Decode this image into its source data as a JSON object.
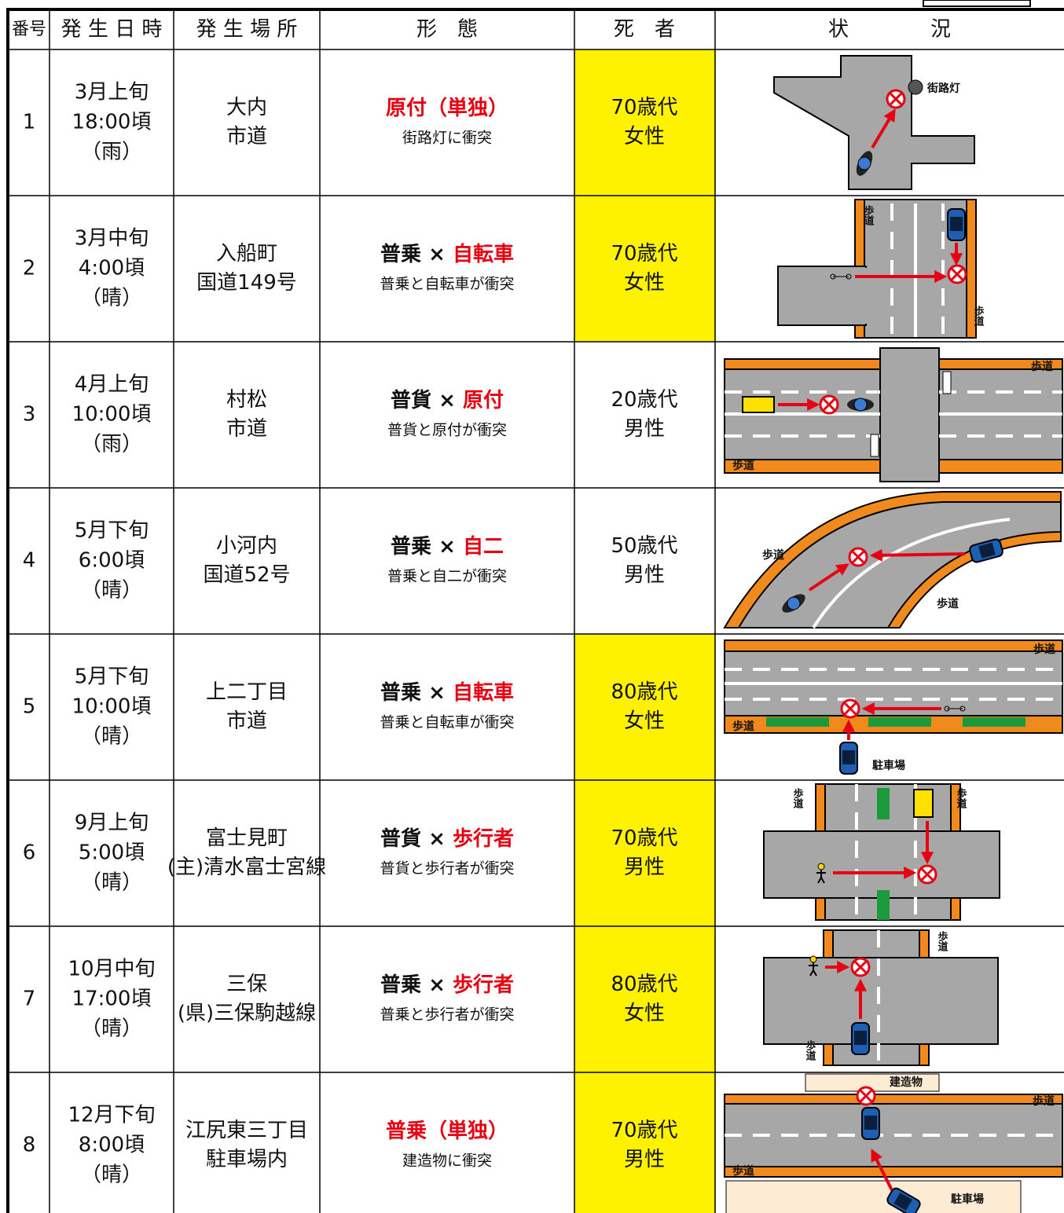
{
  "header": {
    "no": "番号",
    "date": "発 生 日 時",
    "place": "発 生 場 所",
    "form": "形　態",
    "victim": "死　者",
    "situation": "状　　　　況"
  },
  "rows": [
    {
      "no": "1",
      "date": [
        "3月上旬",
        "18:00頃",
        "（雨）"
      ],
      "place": [
        "大内",
        "市道"
      ],
      "form": [
        {
          "text": "原付（単独）",
          "accent": true
        }
      ],
      "form_note": "街路灯に衝突",
      "victim": [
        "70歳代",
        "女性"
      ],
      "highlight": true,
      "diagram_labels": [
        "街路灯"
      ]
    },
    {
      "no": "2",
      "date": [
        "3月中旬",
        "4:00頃",
        "（晴）"
      ],
      "place": [
        "入船町",
        "国道149号"
      ],
      "form": [
        {
          "text": "普乗 × ",
          "accent": false
        },
        {
          "text": "自転車",
          "accent": true
        }
      ],
      "form_note": "普乗と自転車が衝突",
      "victim": [
        "70歳代",
        "女性"
      ],
      "highlight": true,
      "diagram_labels": [
        "歩道",
        "歩道"
      ]
    },
    {
      "no": "3",
      "date": [
        "4月上旬",
        "10:00頃",
        "（雨）"
      ],
      "place": [
        "村松",
        "市道"
      ],
      "form": [
        {
          "text": "普貨 × ",
          "accent": false
        },
        {
          "text": "原付",
          "accent": true
        }
      ],
      "form_note": "普貨と原付が衝突",
      "victim": [
        "20歳代",
        "男性"
      ],
      "highlight": false,
      "diagram_labels": [
        "歩道",
        "歩道"
      ]
    },
    {
      "no": "4",
      "date": [
        "5月下旬",
        "6:00頃",
        "（晴）"
      ],
      "place": [
        "小河内",
        "国道52号"
      ],
      "form": [
        {
          "text": "普乗 × ",
          "accent": false
        },
        {
          "text": "自二",
          "accent": true
        }
      ],
      "form_note": "普乗と自二が衝突",
      "victim": [
        "50歳代",
        "男性"
      ],
      "highlight": false,
      "diagram_labels": [
        "歩道",
        "歩道"
      ]
    },
    {
      "no": "5",
      "date": [
        "5月下旬",
        "10:00頃",
        "（晴）"
      ],
      "place": [
        "上二丁目",
        "市道"
      ],
      "form": [
        {
          "text": "普乗 × ",
          "accent": false
        },
        {
          "text": "自転車",
          "accent": true
        }
      ],
      "form_note": "普乗と自転車が衝突",
      "victim": [
        "80歳代",
        "女性"
      ],
      "highlight": true,
      "diagram_labels": [
        "歩道",
        "歩道",
        "駐車場"
      ]
    },
    {
      "no": "6",
      "date": [
        "9月上旬",
        "5:00頃",
        "（晴）"
      ],
      "place": [
        "富士見町",
        "(主)清水富士宮線"
      ],
      "form": [
        {
          "text": "普貨 × ",
          "accent": false
        },
        {
          "text": "歩行者",
          "accent": true
        }
      ],
      "form_note": "普貨と歩行者が衝突",
      "victim": [
        "70歳代",
        "男性"
      ],
      "highlight": true,
      "diagram_labels": [
        "歩道",
        "歩道"
      ]
    },
    {
      "no": "7",
      "date": [
        "10月中旬",
        "17:00頃",
        "（晴）"
      ],
      "place": [
        "三保",
        "(県)三保駒越線"
      ],
      "form": [
        {
          "text": "普乗 × ",
          "accent": false
        },
        {
          "text": "歩行者",
          "accent": true
        }
      ],
      "form_note": "普乗と歩行者が衝突",
      "victim": [
        "80歳代",
        "女性"
      ],
      "highlight": true,
      "diagram_labels": [
        "歩道",
        "歩道"
      ]
    },
    {
      "no": "8",
      "date": [
        "12月下旬",
        "8:00頃",
        "（晴）"
      ],
      "place": [
        "江尻東三丁目",
        "駐車場内"
      ],
      "form": [
        {
          "text": "普乗（単独）",
          "accent": true
        }
      ],
      "form_note": "建造物に衝突",
      "victim": [
        "70歳代",
        "男性"
      ],
      "highlight": true,
      "diagram_labels": [
        "建造物",
        "歩道",
        "歩道",
        "駐車場"
      ]
    }
  ]
}
